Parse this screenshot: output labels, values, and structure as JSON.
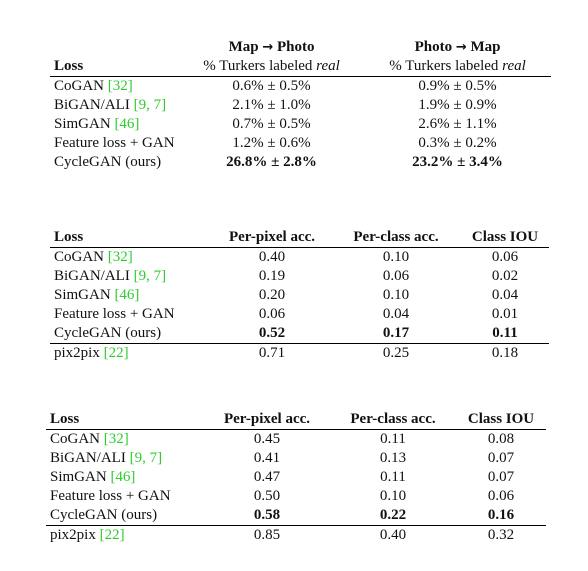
{
  "table1": {
    "header_groups": [
      {
        "title_a": "Map ",
        "title_b": " Photo",
        "subtitle_a": "% Turkers labeled ",
        "subtitle_em": "real"
      },
      {
        "title_a": "Photo ",
        "title_b": " Map",
        "subtitle_a": "% Turkers labeled ",
        "subtitle_em": "real"
      }
    ],
    "arrow": "→",
    "loss_header": "Loss",
    "rows": [
      {
        "name": "CoGAN ",
        "cite": "[32]",
        "c1": "0.6% ± 0.5%",
        "c2": "0.9% ± 0.5%"
      },
      {
        "name": "BiGAN/ALI ",
        "cite": "[9, 7]",
        "c1": "2.1% ± 1.0%",
        "c2": "1.9% ± 0.9%"
      },
      {
        "name": "SimGAN ",
        "cite": "[46]",
        "c1": "0.7% ± 0.5%",
        "c2": "2.6% ± 1.1%"
      },
      {
        "name": "Feature loss + GAN",
        "cite": "",
        "c1": "1.2% ± 0.6%",
        "c2": "0.3% ± 0.2%"
      },
      {
        "name": "CycleGAN (ours)",
        "cite": "",
        "c1": "26.8% ± 2.8%",
        "c2a": "23.2%",
        "c2b": " ± 3.4%"
      }
    ]
  },
  "table2": {
    "headers": [
      "Loss",
      "Per-pixel acc.",
      "Per-class acc.",
      "Class IOU"
    ],
    "rows": [
      {
        "name": "CoGAN ",
        "cite": "[32]",
        "v": [
          "0.40",
          "0.10",
          "0.06"
        ]
      },
      {
        "name": "BiGAN/ALI ",
        "cite": "[9, 7]",
        "v": [
          "0.19",
          "0.06",
          "0.02"
        ]
      },
      {
        "name": "SimGAN ",
        "cite": "[46]",
        "v": [
          "0.20",
          "0.10",
          "0.04"
        ]
      },
      {
        "name": "Feature loss + GAN",
        "cite": "",
        "v": [
          "0.06",
          "0.04",
          "0.01"
        ]
      },
      {
        "name": "CycleGAN (ours)",
        "cite": "",
        "v": [
          "0.52",
          "0.17",
          "0.11"
        ]
      },
      {
        "name": "pix2pix ",
        "cite": "[22]",
        "v": [
          "0.71",
          "0.25",
          "0.18"
        ]
      }
    ]
  },
  "table3": {
    "headers": [
      "Loss",
      "Per-pixel acc.",
      "Per-class acc.",
      "Class IOU"
    ],
    "rows": [
      {
        "name": "CoGAN ",
        "cite": "[32]",
        "v": [
          "0.45",
          "0.11",
          "0.08"
        ]
      },
      {
        "name": "BiGAN/ALI ",
        "cite": "[9, 7]",
        "v": [
          "0.41",
          "0.13",
          "0.07"
        ]
      },
      {
        "name": "SimGAN ",
        "cite": "[46]",
        "v": [
          "0.47",
          "0.11",
          "0.07"
        ]
      },
      {
        "name": "Feature loss + GAN",
        "cite": "",
        "v": [
          "0.50",
          "0.10",
          "0.06"
        ]
      },
      {
        "name": "CycleGAN (ours)",
        "cite": "",
        "v": [
          "0.58",
          "0.22",
          "0.16"
        ]
      },
      {
        "name": "pix2pix ",
        "cite": "[22]",
        "v": [
          "0.85",
          "0.40",
          "0.32"
        ]
      }
    ]
  }
}
